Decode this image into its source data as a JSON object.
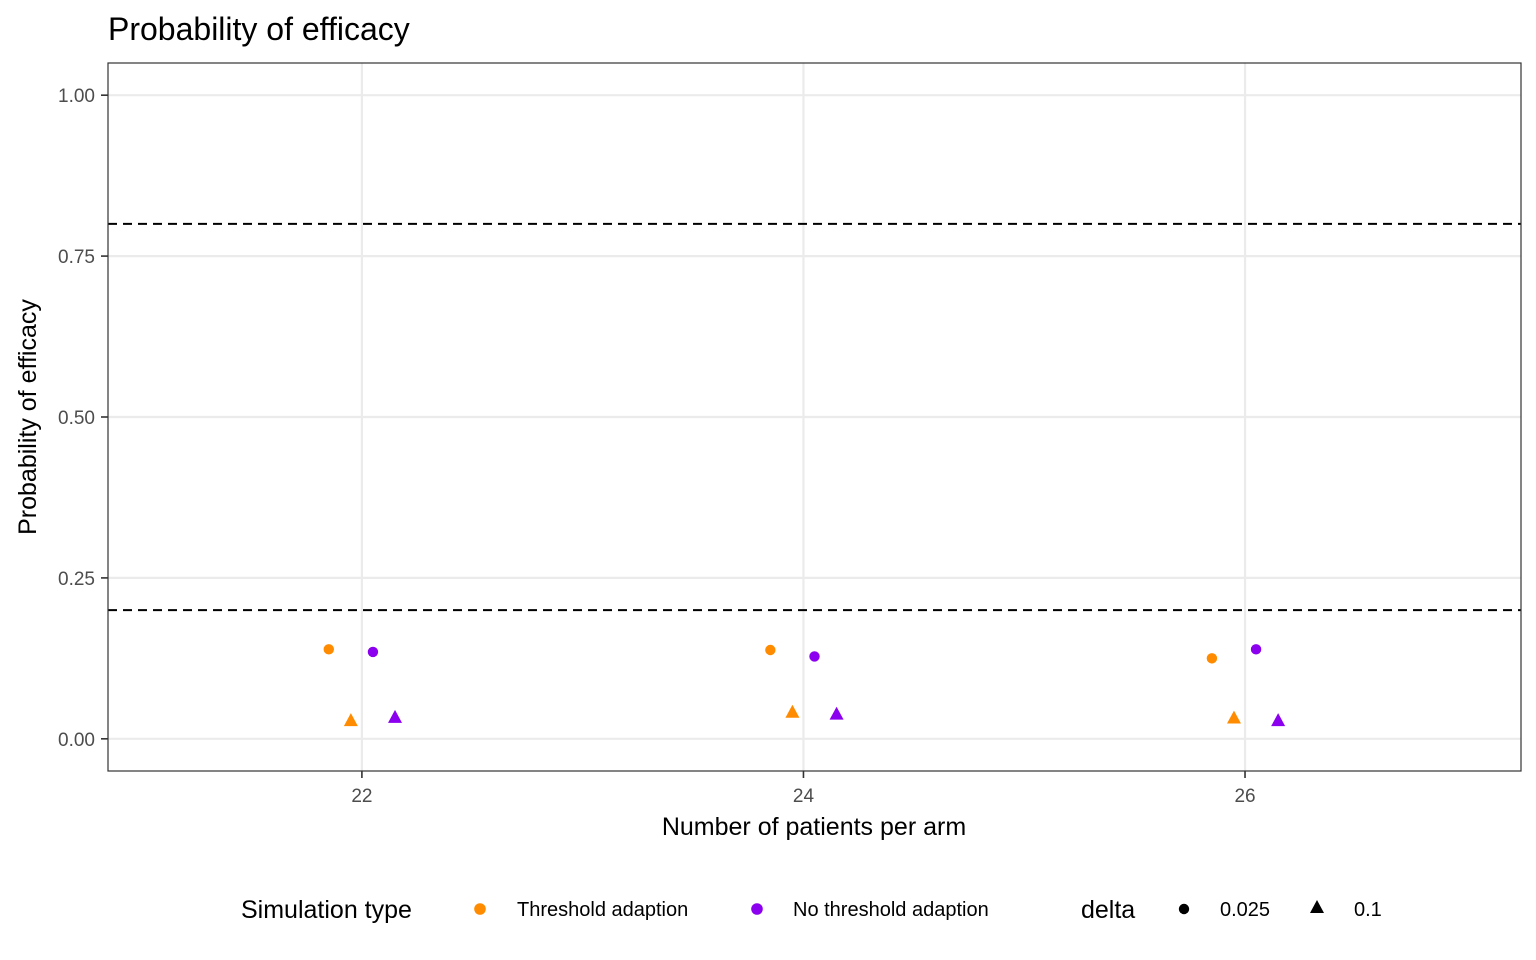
{
  "chart_data": {
    "type": "scatter",
    "title": "Probability of efficacy",
    "xlabel": "Number of patients per arm",
    "ylabel": "Probability of efficacy",
    "xlim": [
      20.85,
      27.25
    ],
    "ylim": [
      -0.05,
      1.05
    ],
    "x_ticks": [
      22,
      24,
      26
    ],
    "x_tick_labels": [
      "22",
      "24",
      "26"
    ],
    "y_ticks": [
      0,
      0.25,
      0.5,
      0.75,
      1
    ],
    "y_tick_labels": [
      "0.00",
      "0.25",
      "0.50",
      "0.75",
      "1.00"
    ],
    "reference_lines": [
      0.2,
      0.8
    ],
    "grid": true,
    "legend_position": "bottom",
    "color_legend": {
      "title": "Simulation type",
      "entries": [
        {
          "label": "Threshold adaption",
          "color": "#FF8C00"
        },
        {
          "label": "No threshold adaption",
          "color": "#8B00EE"
        }
      ]
    },
    "shape_legend": {
      "title": "delta",
      "entries": [
        {
          "label": "0.025",
          "shape": "circle"
        },
        {
          "label": "0.1",
          "shape": "triangle"
        }
      ]
    },
    "series": [
      {
        "simulation": "Threshold adaption",
        "delta": "0.025",
        "x": [
          21.85,
          23.85,
          25.85
        ],
        "y": [
          0.139,
          0.138,
          0.125
        ]
      },
      {
        "simulation": "No threshold adaption",
        "delta": "0.025",
        "x": [
          22.05,
          24.05,
          26.05
        ],
        "y": [
          0.135,
          0.128,
          0.139
        ]
      },
      {
        "simulation": "Threshold adaption",
        "delta": "0.1",
        "x": [
          21.95,
          23.95,
          25.95
        ],
        "y": [
          0.029,
          0.042,
          0.033
        ]
      },
      {
        "simulation": "No threshold adaption",
        "delta": "0.1",
        "x": [
          22.15,
          24.15,
          26.15
        ],
        "y": [
          0.034,
          0.039,
          0.029
        ]
      }
    ]
  }
}
